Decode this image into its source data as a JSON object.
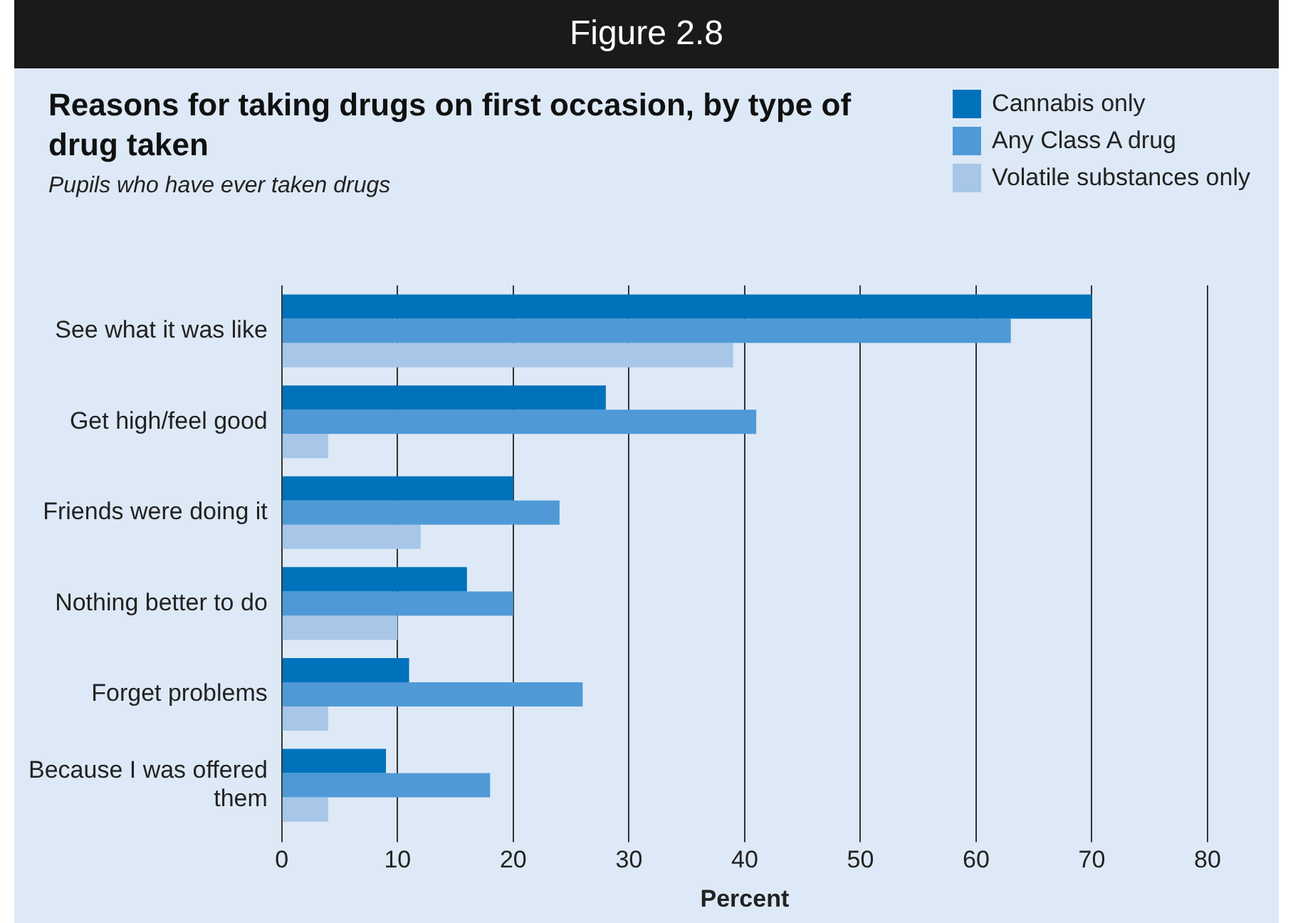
{
  "chart_data": {
    "type": "bar",
    "orientation": "horizontal",
    "title": "Reasons for taking drugs on first occasion, by type of drug taken",
    "subtitle": "Pupils who have ever taken drugs",
    "xlabel": "Percent",
    "annotations": [
      "Figure 2.8"
    ],
    "categories": [
      "See what it was like",
      "Get high/feel good",
      "Friends were doing it",
      "Nothing better to do",
      "Forget problems",
      "Because I was offered them"
    ],
    "series": [
      {
        "name": "Cannabis only",
        "color": "#0072bc",
        "values": [
          70,
          28,
          20,
          16,
          11,
          9
        ]
      },
      {
        "name": "Any Class A drug",
        "color": "#4f9ad6",
        "values": [
          63,
          41,
          24,
          20,
          26,
          18
        ]
      },
      {
        "name": "Volatile substances only",
        "color": "#a7c6e8",
        "values": [
          39,
          4,
          12,
          10,
          4,
          4
        ]
      }
    ],
    "xlim": [
      0,
      80
    ],
    "xticks": [
      0,
      10,
      20,
      30,
      40,
      50,
      60,
      70,
      80
    ],
    "grid": "x",
    "legend": "top right"
  }
}
